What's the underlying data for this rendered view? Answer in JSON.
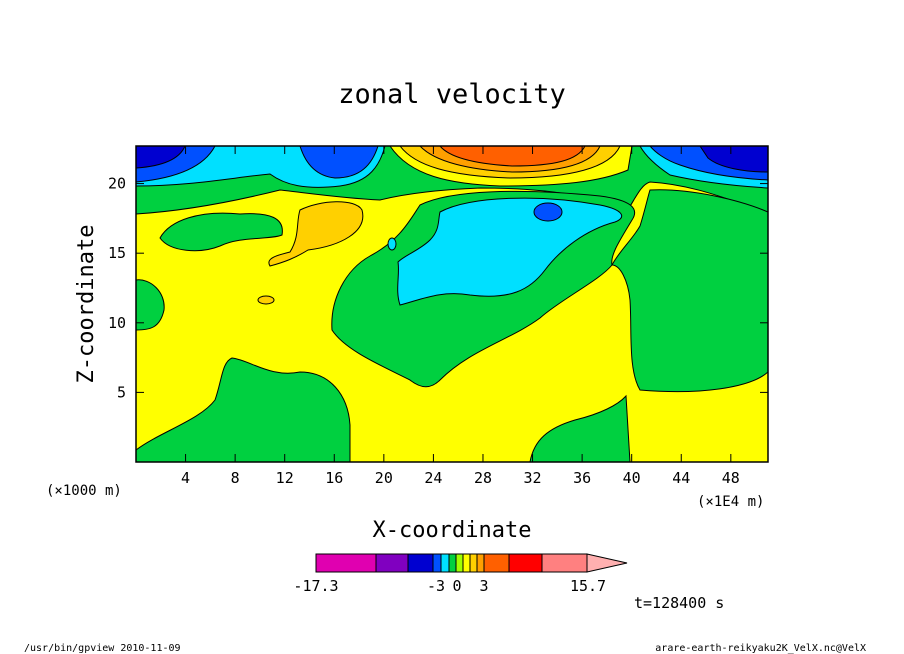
{
  "chart_data": {
    "type": "heatmap",
    "title": "zonal velocity",
    "xlabel": "X-coordinate",
    "ylabel": "Z-coordinate",
    "x_units_left": "(×1000 m)",
    "x_units_right": "(×1E4 m)",
    "x_ticks": [
      "4",
      "8",
      "12",
      "16",
      "20",
      "24",
      "28",
      "32",
      "36",
      "40",
      "44",
      "48"
    ],
    "y_ticks": [
      "5",
      "10",
      "15",
      "20"
    ],
    "xlim": [
      0,
      51
    ],
    "ylim": [
      0,
      22.7
    ],
    "colorbar": {
      "labels": [
        "-17.3",
        "-3",
        "0",
        "3",
        "15.7"
      ],
      "colors": [
        "#e000b0",
        "#8000c0",
        "#0000d0",
        "#0050ff",
        "#00e0ff",
        "#00d040",
        "#a0ff00",
        "#ffff00",
        "#ffd000",
        "#ffa000",
        "#ff6000",
        "#ff0000",
        "#ff8080",
        "#ffb0b0"
      ]
    },
    "time_label": "t=128400 s",
    "footer_left": "/usr/bin/gpview   2010-11-09",
    "footer_right": "arare-earth-reikyaku2K_VelX.nc@VelX"
  }
}
